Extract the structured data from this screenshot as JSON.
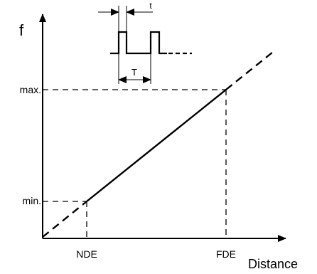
{
  "chart_data": {
    "type": "line",
    "ylabel": "f",
    "xlabel": "Distance",
    "x_ticks": [
      "NDE",
      "FDE"
    ],
    "y_ticks": [
      "min.",
      "max."
    ],
    "pulse_labels": {
      "pulse_width": "t",
      "period": "T"
    },
    "series": [
      {
        "x": [
          "NDE",
          "FDE"
        ],
        "y": [
          "min.",
          "max."
        ]
      }
    ],
    "extrapolation": "dashed",
    "grid": false
  },
  "colors": {
    "stroke": "#000000",
    "background": "#ffffff"
  }
}
